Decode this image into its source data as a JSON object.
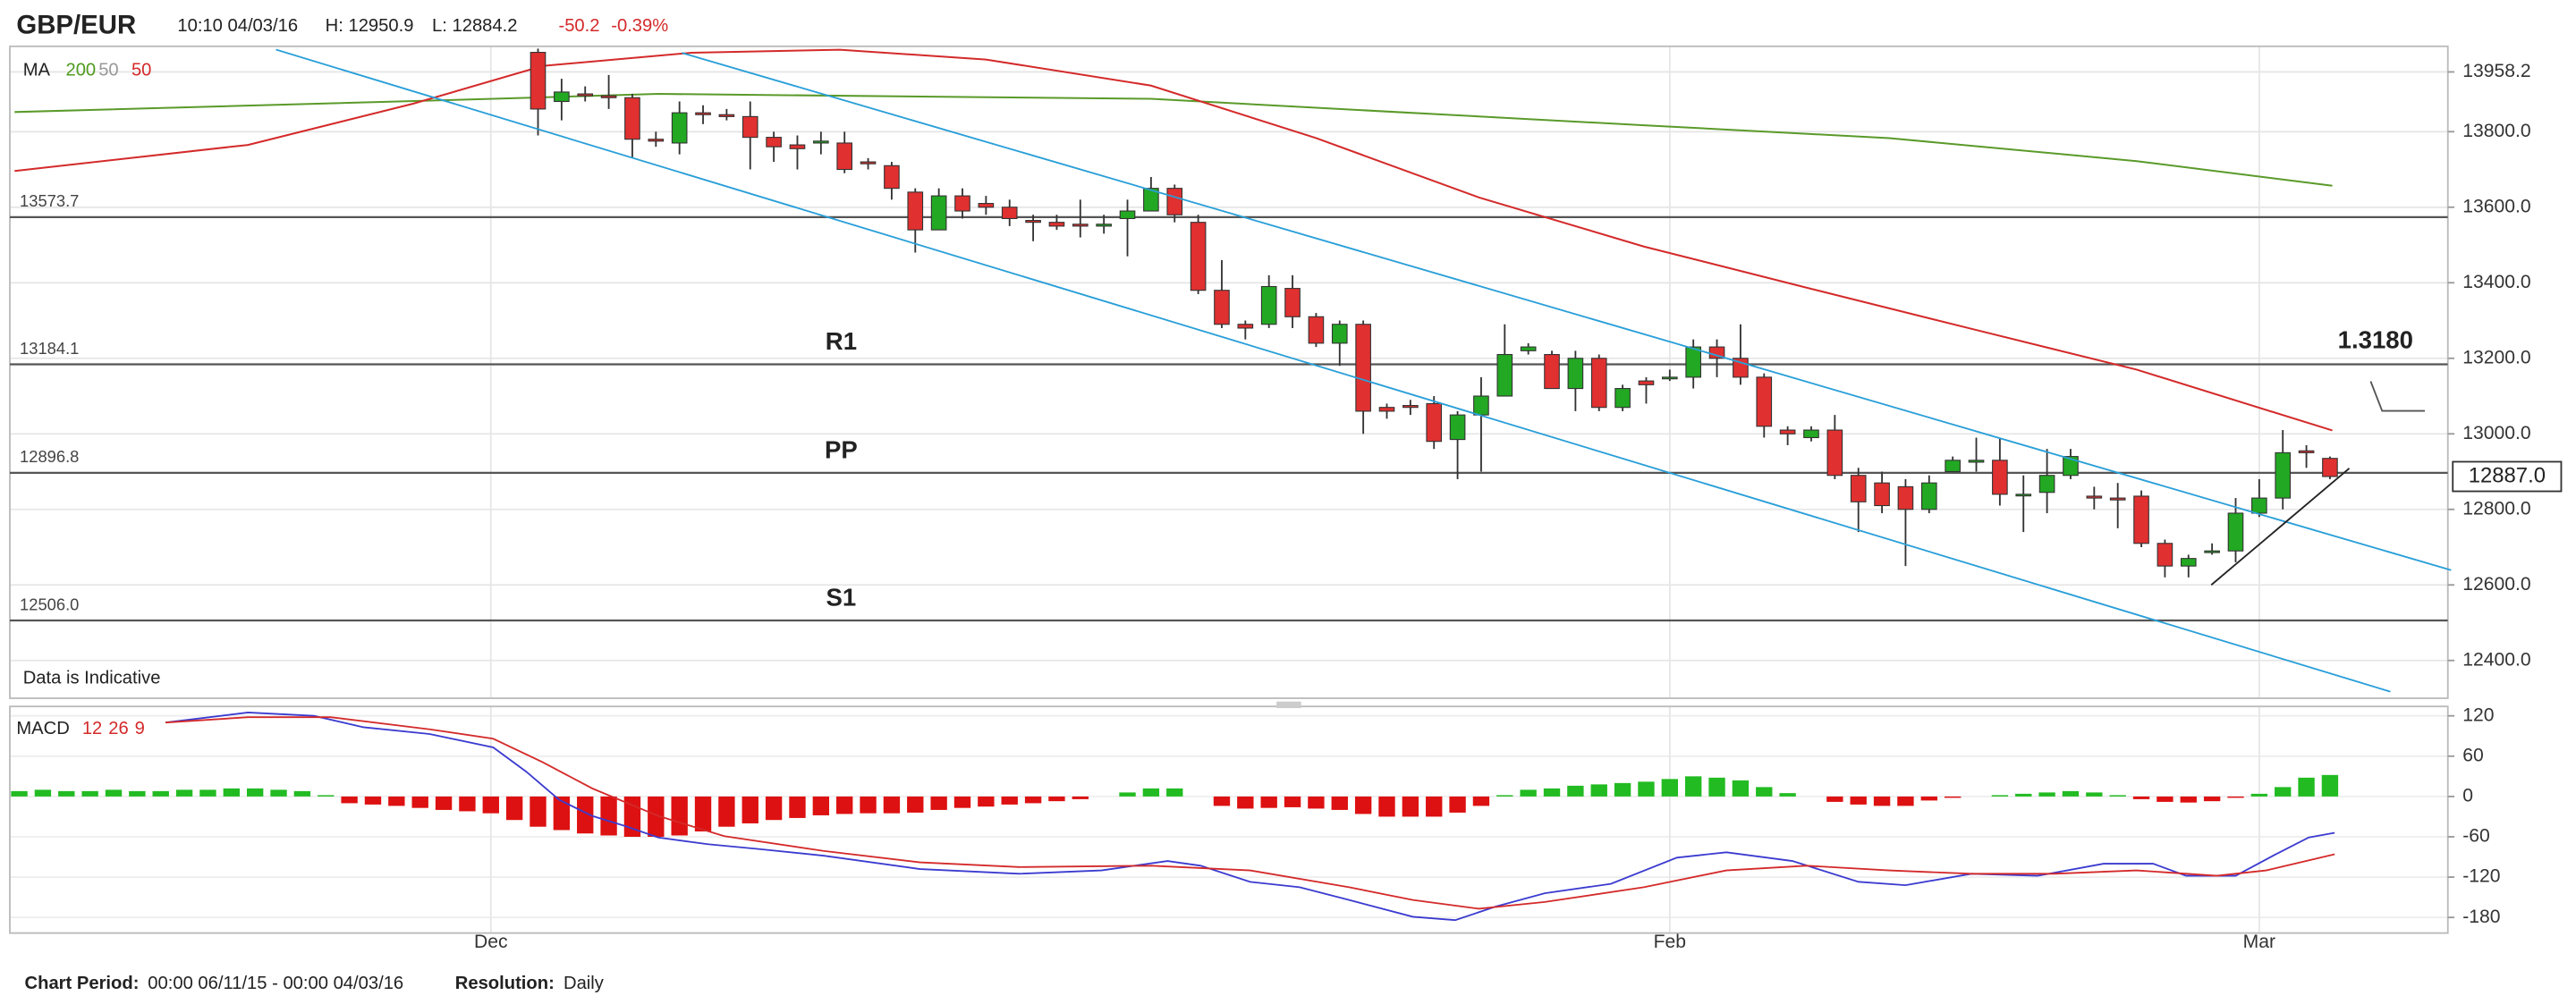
{
  "header": {
    "symbol": "GBP/EUR",
    "time": "10:10 04/03/16",
    "high": "H: 12950.9",
    "low": "L: 12884.2",
    "change": "-50.2",
    "change_pct": "-0.39%"
  },
  "chart_data": [
    {
      "type": "candlestick",
      "open": [
        null,
        null,
        null,
        null,
        null,
        null,
        null,
        null,
        null,
        null,
        null,
        null,
        null,
        null,
        null,
        null,
        null,
        null,
        null,
        null,
        null,
        null,
        14010,
        13880,
        13900,
        13895,
        13890,
        13780,
        13770,
        13850,
        13845,
        13840,
        13785,
        13765,
        13770,
        13770,
        13720,
        13710,
        13640,
        13540,
        13630,
        13610,
        13600,
        13565,
        13560,
        13555,
        13550,
        13570,
        13590,
        13650,
        13560,
        13380,
        13290,
        13290,
        13385,
        13310,
        13240,
        13290,
        13070,
        13075,
        13080,
        12985,
        13050,
        13100,
        13220,
        13210,
        13120,
        13200,
        13070,
        13140,
        13150,
        13150,
        13230,
        13200,
        13150,
        13010,
        12990,
        13010,
        12890,
        12870,
        12860,
        12800,
        12900,
        12925,
        12930,
        12840,
        12845,
        12890,
        12835,
        12830,
        12835,
        12710,
        12650,
        12690,
        12690,
        12790,
        12830,
        12955,
        12935
      ],
      "high": [
        null,
        null,
        null,
        null,
        null,
        null,
        null,
        null,
        null,
        null,
        null,
        null,
        null,
        null,
        null,
        null,
        null,
        null,
        null,
        null,
        null,
        null,
        14020,
        13940,
        13920,
        13950,
        13900,
        13800,
        13880,
        13870,
        13860,
        13880,
        13800,
        13790,
        13800,
        13800,
        13730,
        13720,
        13650,
        13650,
        13650,
        13630,
        13620,
        13580,
        13580,
        13620,
        13580,
        13620,
        13680,
        13660,
        13580,
        13460,
        13300,
        13420,
        13420,
        13320,
        13300,
        13300,
        13080,
        13090,
        13100,
        13060,
        13150,
        13290,
        13240,
        13220,
        13220,
        13210,
        13130,
        13150,
        13170,
        13250,
        13250,
        13290,
        13160,
        13020,
        13020,
        13050,
        12910,
        12900,
        12880,
        12890,
        12940,
        12990,
        12990,
        12890,
        12960,
        12960,
        12860,
        12870,
        12850,
        12720,
        12680,
        12710,
        12830,
        12880,
        13010,
        12970,
        12940
      ],
      "low": [
        null,
        null,
        null,
        null,
        null,
        null,
        null,
        null,
        null,
        null,
        null,
        null,
        null,
        null,
        null,
        null,
        null,
        null,
        null,
        null,
        null,
        null,
        13790,
        13830,
        13880,
        13860,
        13730,
        13760,
        13740,
        13820,
        13830,
        13700,
        13720,
        13700,
        13740,
        13690,
        13700,
        13620,
        13480,
        13540,
        13570,
        13580,
        13550,
        13510,
        13540,
        13520,
        13530,
        13470,
        13590,
        13560,
        13370,
        13280,
        13250,
        13280,
        13280,
        13230,
        13180,
        13000,
        13040,
        13050,
        12960,
        12880,
        12900,
        13100,
        13210,
        13120,
        13060,
        13060,
        13060,
        13080,
        13140,
        13120,
        13150,
        13130,
        12990,
        12970,
        12980,
        12880,
        12740,
        12790,
        12650,
        12790,
        12900,
        12900,
        12810,
        12740,
        12790,
        12880,
        12800,
        12750,
        12700,
        12620,
        12620,
        12680,
        12660,
        12780,
        12800,
        12910,
        12880
      ],
      "close": [
        null,
        null,
        null,
        null,
        null,
        null,
        null,
        null,
        null,
        null,
        null,
        null,
        null,
        null,
        null,
        null,
        null,
        null,
        null,
        null,
        null,
        null,
        13860,
        13905,
        13895,
        13890,
        13780,
        13775,
        13850,
        13845,
        13840,
        13785,
        13760,
        13755,
        13775,
        13700,
        13715,
        13650,
        13540,
        13630,
        13590,
        13600,
        13570,
        13560,
        13550,
        13550,
        13555,
        13590,
        13650,
        13580,
        13380,
        13290,
        13280,
        13390,
        13310,
        13240,
        13290,
        13060,
        13060,
        13070,
        12980,
        13050,
        13100,
        13210,
        13230,
        13120,
        13200,
        13070,
        13120,
        13130,
        13150,
        13230,
        13200,
        13150,
        13020,
        13000,
        13010,
        12890,
        12820,
        12810,
        12800,
        12870,
        12930,
        12930,
        12840,
        12840,
        12890,
        12940,
        12830,
        12825,
        12710,
        12650,
        12670,
        12690,
        12790,
        12830,
        12950,
        12950,
        12887
      ],
      "up_color": "#22a822",
      "down_color": "#e03030",
      "xlim": [
        -0.4,
        103
      ],
      "ylim": [
        12300,
        14026
      ],
      "yticks": [
        13958.2,
        {
          "value": 13800,
          "label": "13800.0"
        },
        {
          "value": 13600,
          "label": "13600.0"
        },
        {
          "value": 13400,
          "label": "13400.0"
        },
        {
          "value": 13200,
          "label": "13200.0"
        },
        {
          "value": 13000,
          "label": "13000.0"
        },
        {
          "value": 12800,
          "label": "12800.0"
        },
        {
          "value": 12600,
          "label": "12600.0"
        },
        {
          "value": 12400,
          "label": "12400.0"
        }
      ],
      "grid": true,
      "ma_label": "MA",
      "ma_legend": [
        {
          "text": "200",
          "color": "#4f9a1f"
        },
        {
          "text": "50",
          "color": "#999999"
        },
        {
          "text": "50",
          "color": "#d42a2a"
        }
      ],
      "lines": [
        {
          "color": "#5a9a2a",
          "x": [
            -0.2,
            20.1,
            27.1,
            48,
            58.4,
            68.9,
            79.3,
            89.8,
            98.1
          ],
          "values": [
            13852,
            13887,
            13900,
            13887,
            13852,
            13817,
            13783,
            13722,
            13657
          ]
        },
        {
          "color": "#d42a2a",
          "x": [
            -0.2,
            9.7,
            16.7,
            22.2,
            28.5,
            34.8,
            41,
            48,
            55,
            61.9,
            68.9,
            75.8,
            82.8,
            89.8,
            98.1
          ],
          "values": [
            13696,
            13765,
            13874,
            13974,
            14009,
            14017,
            13991,
            13922,
            13783,
            13626,
            13496,
            13387,
            13278,
            13170,
            13009
          ]
        }
      ],
      "levels": [
        {
          "value": 13573.7,
          "label": "13573.7"
        },
        {
          "value": 13184.1,
          "label": "13184.1",
          "name": "R1"
        },
        {
          "value": 12896.8,
          "label": "12896.8",
          "name": "PP"
        },
        {
          "value": 12506,
          "label": "12506.0",
          "name": "S1"
        }
      ],
      "last_price": {
        "value": 12887,
        "label": "12887.0"
      },
      "target": "1.3180",
      "note": "Data is Indicative"
    },
    {
      "type": "macd",
      "label": "MACD",
      "params": [
        "12",
        "26",
        "9"
      ],
      "params_color": "#d42a2a",
      "categories": [
        null,
        null,
        null,
        null,
        null,
        null,
        null,
        null,
        null,
        null,
        null,
        null,
        null,
        null,
        null,
        null,
        null,
        null,
        null,
        null,
        "Dec",
        null,
        null,
        null,
        null,
        null,
        null,
        null,
        null,
        null,
        null,
        null,
        null,
        null,
        null,
        null,
        null,
        null,
        null,
        null,
        null,
        null,
        null,
        null,
        null,
        null,
        null,
        null,
        null,
        null,
        null,
        null,
        null,
        null,
        null,
        null,
        null,
        null,
        null,
        null,
        null,
        null,
        null,
        null,
        null,
        null,
        null,
        null,
        null,
        null,
        "Feb",
        null,
        null,
        null,
        null,
        null,
        null,
        null,
        null,
        null,
        null,
        null,
        null,
        null,
        null,
        null,
        null,
        null,
        null,
        null,
        null,
        null,
        null,
        null,
        null,
        "Mar",
        null,
        null,
        null
      ],
      "xlim": [
        -0.4,
        103
      ],
      "ylim": [
        -202,
        134
      ],
      "yticks": [
        120,
        60,
        0,
        -60,
        -120,
        -180
      ],
      "histogram": {
        "values": [
          8,
          10,
          8,
          8,
          10,
          8,
          8,
          10,
          10,
          12,
          12,
          10,
          8,
          2,
          -10,
          -12,
          -14,
          -17,
          -20,
          -22,
          -25,
          -35,
          -45,
          -50,
          -55,
          -58,
          -60,
          -60,
          -58,
          -52,
          -45,
          -40,
          -35,
          -32,
          -28,
          -26,
          -25,
          -25,
          -24,
          -20,
          -17,
          -15,
          -12,
          -10,
          -7,
          -4,
          0,
          6,
          12,
          12,
          0,
          -14,
          -18,
          -17,
          -16,
          -18,
          -20,
          -26,
          -30,
          -30,
          -30,
          -24,
          -14,
          2,
          10,
          12,
          16,
          18,
          20,
          22,
          26,
          30,
          28,
          24,
          14,
          5,
          0,
          -8,
          -12,
          -14,
          -14,
          -6,
          -2,
          0,
          2,
          4,
          6,
          8,
          6,
          2,
          -4,
          -8,
          -9,
          -7,
          -2,
          4,
          14,
          28,
          32
        ],
        "up_color": "#22bb22",
        "down_color": "#dd1111"
      },
      "series": [
        {
          "color": "#3b3bd0",
          "x": [
            6.2,
            9.7,
            12.5,
            14.6,
            17.4,
            20.1,
            21.5,
            22.9,
            24.3,
            25.7,
            27.1,
            29.2,
            31.3,
            34.1,
            38.2,
            42.4,
            45.9,
            48.7,
            50.1,
            52.2,
            54.3,
            56.4,
            59.1,
            60.9,
            62.6,
            64.7,
            67.5,
            70.3,
            72.4,
            75.2,
            78,
            80,
            82.8,
            85.6,
            88.4,
            90.5,
            91.9,
            94,
            95.7,
            97.1,
            98.2
          ],
          "values": [
            110,
            125,
            120,
            103,
            93,
            73,
            37,
            -5,
            -29,
            -44,
            -61,
            -71,
            -78,
            -88,
            -108,
            -115,
            -110,
            -96,
            -103,
            -127,
            -135,
            -154,
            -179,
            -184,
            -164,
            -144,
            -130,
            -91,
            -83,
            -96,
            -127,
            -132,
            -115,
            -118,
            -100,
            -100,
            -118,
            -118,
            -86,
            -61,
            -54
          ]
        },
        {
          "color": "#d42a2a",
          "x": [
            6.2,
            9.7,
            13.2,
            17.4,
            20.1,
            22.2,
            24.3,
            27.1,
            29.9,
            34.1,
            38.2,
            42.4,
            48,
            52.2,
            56.4,
            59.1,
            61.9,
            64.7,
            68.9,
            72.4,
            75.8,
            79.3,
            82.8,
            86.3,
            89.8,
            93.2,
            95.3,
            98.2
          ],
          "values": [
            110,
            118,
            118,
            100,
            86,
            51,
            12,
            -29,
            -59,
            -81,
            -98,
            -105,
            -103,
            -110,
            -135,
            -154,
            -167,
            -157,
            -135,
            -110,
            -103,
            -110,
            -115,
            -115,
            -110,
            -118,
            -110,
            -86
          ]
        }
      ]
    }
  ],
  "footer": {
    "period_label": "Chart Period:",
    "period": "00:00 06/11/15 - 00:00 04/03/16",
    "resolution_label": "Resolution:",
    "resolution": "Daily"
  }
}
